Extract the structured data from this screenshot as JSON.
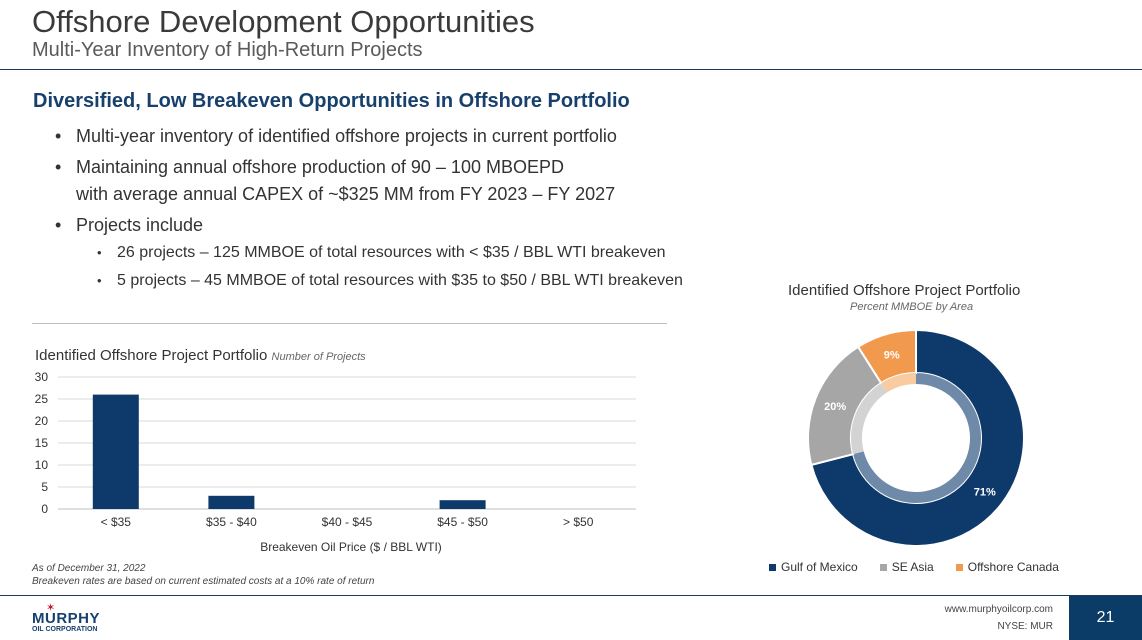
{
  "header": {
    "title": "Offshore Development Opportunities",
    "subtitle": "Multi-Year Inventory of High-Return Projects"
  },
  "content": {
    "heading": "Diversified, Low Breakeven Opportunities in Offshore Portfolio",
    "bullets": [
      "Multi-year inventory of identified offshore projects in current portfolio",
      "Maintaining annual offshore production of 90 – 100 MBOEPD",
      "with average annual CAPEX of ~$325 MM from FY 2023 – FY 2027",
      "Projects include"
    ],
    "sub_bullets": [
      "26 projects – 125 MMBOE of total resources with < $35 / BBL WTI breakeven",
      "5 projects – 45 MMBOE of total resources with $35 to $50 / BBL WTI breakeven"
    ]
  },
  "bar_chart_header": {
    "title": "Identified Offshore Project Portfolio",
    "unit_label": "Number of Projects"
  },
  "donut_chart_header": {
    "title": "Identified Offshore Project Portfolio",
    "subtitle": "Percent MMBOE by Area"
  },
  "notes": [
    "As of December 31, 2022",
    "Breakeven rates are based on current estimated costs at a 10% rate of return"
  ],
  "footer": {
    "company": "MURPHY",
    "company_sub": "OIL CORPORATION",
    "url": "www.murphyoilcorp.com",
    "ticker": "NYSE: MUR",
    "page_number": "21"
  },
  "chart_data": [
    {
      "type": "bar",
      "title": "Identified Offshore Project Portfolio",
      "subtitle": "Number of Projects",
      "categories": [
        "< $35",
        "$35 - $40",
        "$40 - $45",
        "$45 - $50",
        "> $50"
      ],
      "values": [
        26,
        3,
        0,
        2,
        0
      ],
      "xlabel": "Breakeven Oil Price ($ / BBL WTI)",
      "ylabel": "",
      "ylim": [
        0,
        30
      ],
      "yticks": [
        0,
        5,
        10,
        15,
        20,
        25,
        30
      ],
      "grid": true,
      "color": "#0e3a6b"
    },
    {
      "type": "pie",
      "style": "donut",
      "title": "Identified Offshore Project Portfolio",
      "subtitle": "Percent MMBOE by Area",
      "labels": [
        "Gulf of Mexico",
        "SE Asia",
        "Offshore Canada"
      ],
      "values": [
        71,
        20,
        9
      ],
      "data_labels": [
        "71%",
        "20%",
        "9%"
      ],
      "colors": [
        "#0e3a6b",
        "#a6a6a6",
        "#f19a4e"
      ],
      "inner_colors": [
        "#6f8aa8",
        "#d3d3d3",
        "#f8cba0"
      ],
      "legend": "bottom"
    }
  ]
}
